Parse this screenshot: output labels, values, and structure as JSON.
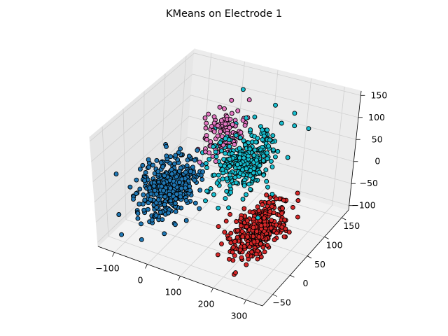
{
  "chart_data": {
    "type": "scatter",
    "title": "KMeans on Electrode 1",
    "xlabel": "",
    "ylabel": "",
    "zlabel": "",
    "projection": "3d",
    "grid": true,
    "xlim": [
      -150,
      350
    ],
    "ylim": [
      -80,
      170
    ],
    "zlim": [
      -110,
      160
    ],
    "xticks": [
      "−100",
      "0",
      "100",
      "200",
      "300"
    ],
    "yticks": [
      "−50",
      "0",
      "50",
      "100",
      "150"
    ],
    "zticks": [
      "−100",
      "−50",
      "0",
      "50",
      "100",
      "150"
    ],
    "series": [
      {
        "color": "#e377c2",
        "center": [
          30,
          100,
          60
        ],
        "spread": [
          25,
          20,
          22
        ],
        "n": 110
      },
      {
        "color": "#1f77b4",
        "center": [
          -40,
          20,
          -20
        ],
        "spread": [
          32,
          28,
          28
        ],
        "n": 420
      },
      {
        "color": "#17becf",
        "center": [
          120,
          80,
          30
        ],
        "spread": [
          35,
          28,
          28
        ],
        "n": 300
      },
      {
        "color": "#d62728",
        "center": [
          200,
          50,
          -90
        ],
        "spread": [
          28,
          30,
          20
        ],
        "n": 340
      }
    ],
    "outliers": [
      {
        "series": 2,
        "x": 170,
        "y": 110,
        "z": 145
      },
      {
        "series": 2,
        "x": 240,
        "y": 100,
        "z": 150
      },
      {
        "series": 2,
        "x": 230,
        "y": 110,
        "z": 110
      },
      {
        "series": 2,
        "x": 250,
        "y": 130,
        "z": 90
      },
      {
        "series": 2,
        "x": 60,
        "y": 120,
        "z": 150
      },
      {
        "series": 0,
        "x": 80,
        "y": 120,
        "z": 130
      },
      {
        "series": 3,
        "x": 250,
        "y": 20,
        "z": -20
      },
      {
        "series": 3,
        "x": 200,
        "y": -20,
        "z": -130
      },
      {
        "series": 3,
        "x": 300,
        "y": 30,
        "z": -60
      }
    ]
  }
}
